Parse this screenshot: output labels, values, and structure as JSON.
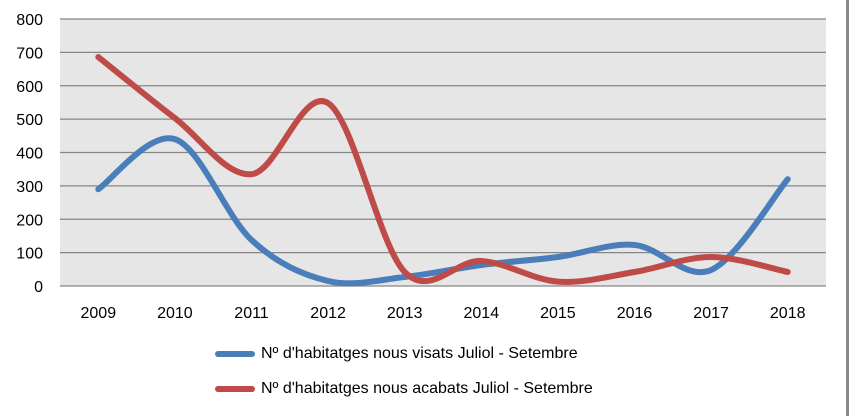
{
  "chart_data": {
    "type": "line",
    "title": "",
    "xlabel": "",
    "ylabel": "",
    "categories": [
      "2009",
      "2010",
      "2011",
      "2012",
      "2013",
      "2014",
      "2015",
      "2016",
      "2017",
      "2018"
    ],
    "ylim": [
      0,
      800
    ],
    "yticks": [
      "0",
      "100",
      "200",
      "300",
      "400",
      "500",
      "600",
      "700",
      "800"
    ],
    "grid": true,
    "smooth": true,
    "legend_position": "bottom",
    "series": [
      {
        "name": "Nº d'habitatges nous visats Juliol - Setembre",
        "color": "#4a7ebb",
        "values": [
          290,
          440,
          138,
          15,
          27,
          63,
          87,
          123,
          48,
          320
        ]
      },
      {
        "name": "Nº d'habitatges nous acabats Juliol - Setembre",
        "color": "#be4b48",
        "values": [
          686,
          503,
          335,
          548,
          42,
          75,
          13,
          42,
          87,
          42
        ]
      }
    ]
  }
}
